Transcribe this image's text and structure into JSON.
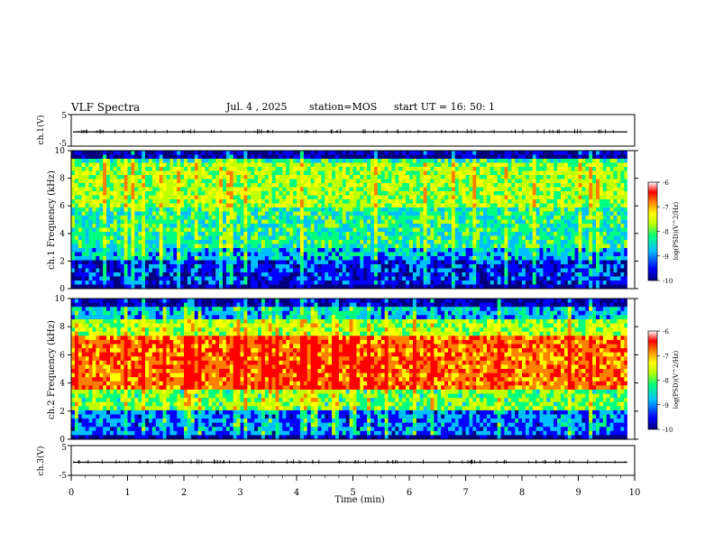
{
  "header": {
    "title": "VLF Spectra",
    "date": "Jul. 4 , 2025",
    "station": "station=MOS",
    "start": "start UT =  16: 50: 1"
  },
  "chart_data": [
    {
      "type": "line",
      "panel": "ch1-waveform",
      "ylabel": "ch.1(V)",
      "ylim": [
        -5,
        5
      ],
      "yticks": [
        "5",
        "-5"
      ],
      "trace_level": -0.5
    },
    {
      "type": "heatmap",
      "panel": "ch1-spectrogram",
      "ylabel": "ch.1 Frequency (kHz)",
      "ylim": [
        0,
        10
      ],
      "yticks": [
        "0",
        "2",
        "4",
        "6",
        "8",
        "10"
      ],
      "description": "broadband impulsive emissions 0-10 kHz, strong 6-9 kHz band",
      "colorbar": {
        "label": "log(PSD)(V^2/Hz)",
        "range": [
          -10,
          -6
        ],
        "ticks": [
          "-6",
          "-7",
          "-8",
          "-9",
          "-10"
        ]
      }
    },
    {
      "type": "heatmap",
      "panel": "ch2-spectrogram",
      "ylabel": "ch.2 Frequency (kHz)",
      "ylim": [
        0,
        10
      ],
      "yticks": [
        "0",
        "2",
        "4",
        "6",
        "8",
        "10"
      ],
      "description": "intense band between 3.5 and 7.5 kHz",
      "colorbar": {
        "label": "log(PSD)(V^2/Hz)",
        "range": [
          -10,
          -6
        ],
        "ticks": [
          "-6",
          "-7",
          "-8",
          "-9",
          "-10"
        ]
      }
    },
    {
      "type": "line",
      "panel": "ch3-waveform",
      "ylabel": "ch.3(V)",
      "ylim": [
        -5,
        5
      ],
      "yticks": [
        "5",
        "-5"
      ],
      "trace_level": -0.6
    }
  ],
  "xaxis": {
    "label": "Time (min)",
    "range": [
      0,
      10
    ],
    "ticks": [
      "0",
      "1",
      "2",
      "3",
      "4",
      "5",
      "6",
      "7",
      "8",
      "9",
      "10"
    ]
  },
  "colors": {
    "spectrum": [
      "#00007f",
      "#0000ff",
      "#00bfff",
      "#00ff7f",
      "#bfff00",
      "#ffff00",
      "#ff7f00",
      "#ff0000",
      "#ffffff"
    ]
  }
}
